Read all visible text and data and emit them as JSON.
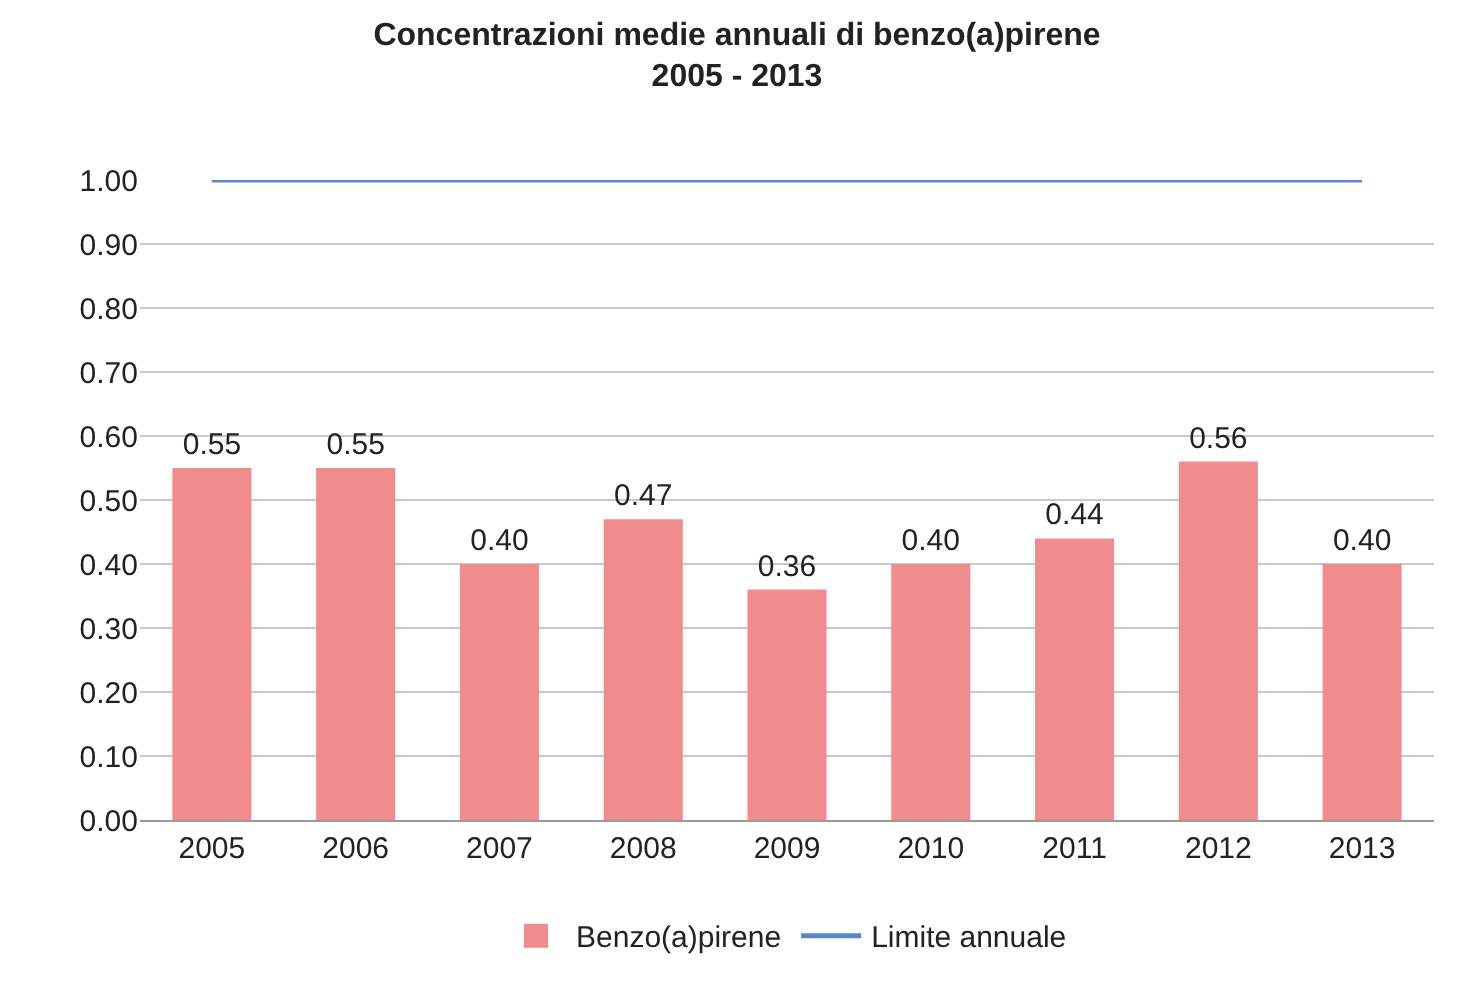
{
  "chart_data": {
    "type": "bar",
    "title": "Concentrazioni medie annuali di benzo(a)pirene",
    "subtitle": "2005 - 2013",
    "categories": [
      "2005",
      "2006",
      "2007",
      "2008",
      "2009",
      "2010",
      "2011",
      "2012",
      "2013"
    ],
    "series": [
      {
        "name": "Benzo(a)pirene",
        "color": "#f08c8c",
        "values": [
          0.55,
          0.55,
          0.4,
          0.47,
          0.36,
          0.4,
          0.44,
          0.56,
          0.4
        ],
        "value_labels": [
          "0.55",
          "0.55",
          "0.40",
          "0.47",
          "0.36",
          "0.40",
          "0.44",
          "0.56",
          "0.40"
        ]
      },
      {
        "name": "Limite annuale",
        "type": "line",
        "color": "#5b86c8",
        "values": [
          1.0,
          1.0,
          1.0,
          1.0,
          1.0,
          1.0,
          1.0,
          1.0,
          1.0
        ]
      }
    ],
    "ylim": [
      0,
      1.0
    ],
    "yticks": [
      {
        "value": 0,
        "label": "0.00"
      },
      {
        "value": 0.1,
        "label": "0.10"
      },
      {
        "value": 0.2,
        "label": "0.20"
      },
      {
        "value": 0.3,
        "label": "0.30"
      },
      {
        "value": 0.4,
        "label": "0.40"
      },
      {
        "value": 0.5,
        "label": "0.50"
      },
      {
        "value": 0.6,
        "label": "0.60"
      },
      {
        "value": 0.7,
        "label": "0.70"
      },
      {
        "value": 0.8,
        "label": "0.80"
      },
      {
        "value": 0.9,
        "label": "0.90"
      },
      {
        "value": 1.0,
        "label": "1.00"
      }
    ],
    "grid": "y",
    "legend": "bottom",
    "marker": "none",
    "line_style": "solid"
  }
}
